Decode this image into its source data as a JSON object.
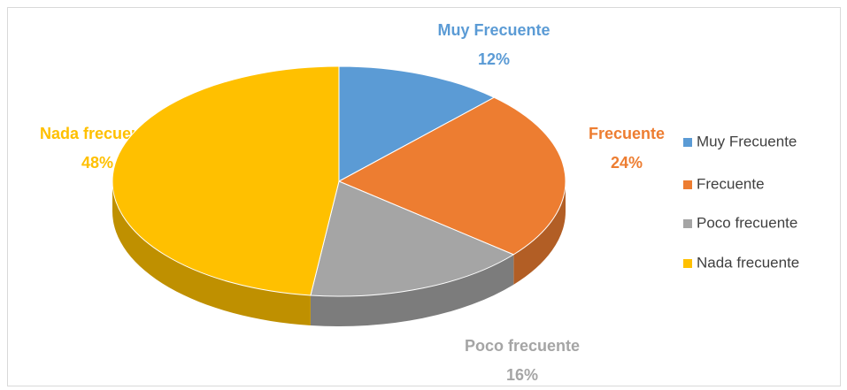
{
  "chart_data": {
    "type": "pie",
    "categories": [
      "Muy Frecuente",
      "Frecuente",
      "Poco frecuente",
      "Nada frecuente"
    ],
    "values": [
      12,
      24,
      16,
      48
    ],
    "value_labels": [
      "12%",
      "24%",
      "16%",
      "48%"
    ],
    "colors": [
      "#5b9bd5",
      "#ed7d31",
      "#a5a5a5",
      "#ffc000"
    ],
    "legend": "right"
  }
}
